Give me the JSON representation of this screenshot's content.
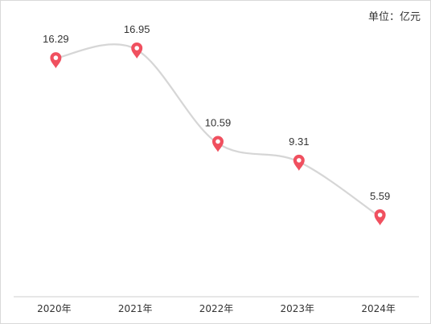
{
  "unit_label": "单位：亿元",
  "colors": {
    "line": "#d6d6d6",
    "marker": "#f0505f",
    "axis": "#cccccc",
    "text": "#333333"
  },
  "marker_icon": "map-pin-icon",
  "chart_data": {
    "type": "line",
    "title": "",
    "xlabel": "",
    "ylabel": "",
    "categories": [
      "2020年",
      "2021年",
      "2022年",
      "2023年",
      "2024年"
    ],
    "series": [
      {
        "values": [
          16.29,
          16.95,
          10.59,
          9.31,
          5.59
        ],
        "data_labels": [
          "16.29",
          "16.95",
          "10.59",
          "9.31",
          "5.59"
        ]
      }
    ],
    "smooth": true,
    "grid": false,
    "legend": "none"
  }
}
